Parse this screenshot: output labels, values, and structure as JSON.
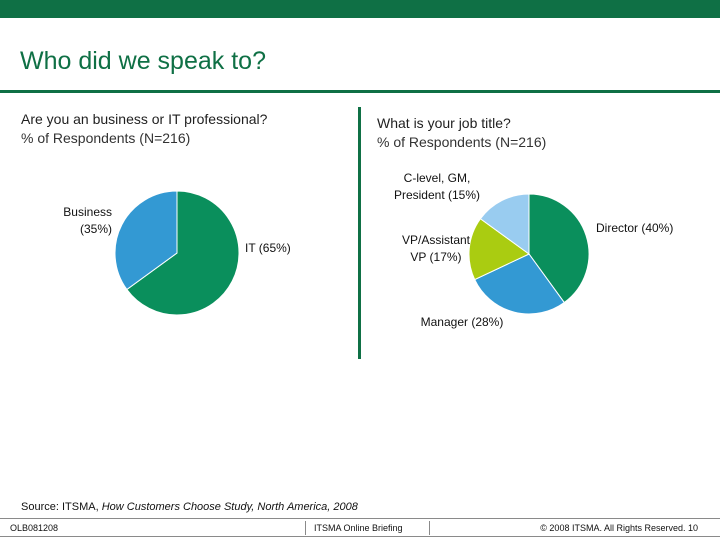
{
  "slide": {
    "title": "Who did we speak to?"
  },
  "left_question": {
    "line1": "Are you an business or IT professional?",
    "line2": "% of Respondents (N=216)"
  },
  "right_question": {
    "line1": "What is your job title?",
    "line2": "% of Respondents (N=216)"
  },
  "source": {
    "prefix": "Source: ITSMA, ",
    "italic": "How Customers Choose Study, North America, 2008"
  },
  "footer": {
    "left": "OLB081208",
    "center": "ITSMA Online Briefing",
    "right": "© 2008 ITSMA. All Rights Reserved. 10"
  },
  "colors": {
    "brand_green": "#0f7045",
    "pie_green": "#0a8f5c",
    "pie_blue": "#3399d3",
    "pie_lime": "#aacc11",
    "pie_lightblue": "#99ccf0"
  },
  "chart_data": [
    {
      "type": "pie",
      "title": "Are you an business or IT professional?",
      "categories": [
        "IT",
        "Business"
      ],
      "values": [
        65,
        35
      ],
      "labels": [
        {
          "lines": [
            "IT (65%)"
          ]
        },
        {
          "lines": [
            "Business",
            "(35%)"
          ]
        }
      ]
    },
    {
      "type": "pie",
      "title": "What is your job title?",
      "categories": [
        "Director",
        "Manager",
        "VP/Assistant VP",
        "C-level, GM, President"
      ],
      "values": [
        40,
        28,
        17,
        15
      ],
      "labels": [
        {
          "lines": [
            "Director (40%)"
          ]
        },
        {
          "lines": [
            "Manager (28%)"
          ]
        },
        {
          "lines": [
            "VP/Assistant",
            "VP (17%)"
          ]
        },
        {
          "lines": [
            "C-level, GM,",
            "President (15%)"
          ]
        }
      ]
    }
  ]
}
